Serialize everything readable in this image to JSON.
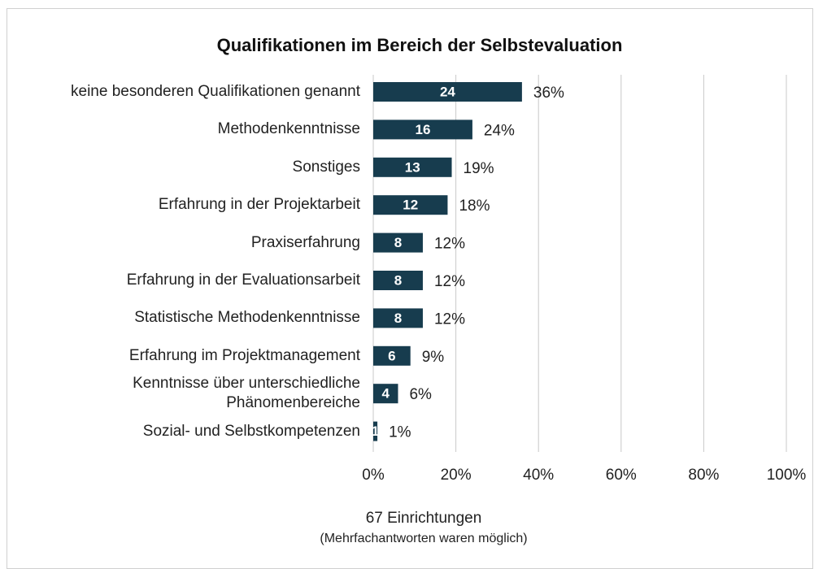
{
  "chart_data": {
    "type": "bar",
    "orientation": "horizontal",
    "title": "Qualifikationen im Bereich der Selbstevaluation",
    "categories": [
      "keine besonderen Qualifikationen genannt",
      "Methodenkenntnisse",
      "Sonstiges",
      "Erfahrung in der Projektarbeit",
      "Praxiserfahrung",
      "Erfahrung in der Evaluationsarbeit",
      "Statistische Methodenkenntnisse",
      "Erfahrung im Projektmanagement",
      "Kenntnisse über unterschiedliche\nPhänomenbereiche",
      "Sozial- und Selbstkompetenzen"
    ],
    "values": [
      36,
      24,
      19,
      18,
      12,
      12,
      12,
      9,
      6,
      1
    ],
    "value_labels": [
      "36%",
      "24%",
      "19%",
      "18%",
      "12%",
      "12%",
      "12%",
      "9%",
      "6%",
      "1%"
    ],
    "counts": [
      24,
      16,
      13,
      12,
      8,
      8,
      8,
      6,
      4,
      1
    ],
    "color": "#173c4e",
    "xlim": [
      0,
      100
    ],
    "xticks": [
      {
        "value": 0,
        "label": "0%"
      },
      {
        "value": 20,
        "label": "20%"
      },
      {
        "value": 40,
        "label": "40%"
      },
      {
        "value": 60,
        "label": "60%"
      },
      {
        "value": 80,
        "label": "80%"
      },
      {
        "value": 100,
        "label": "100%"
      }
    ],
    "grid": true,
    "footnote": "67 Einrichtungen",
    "footnote_sub": "(Mehrfachantworten waren möglich)"
  }
}
